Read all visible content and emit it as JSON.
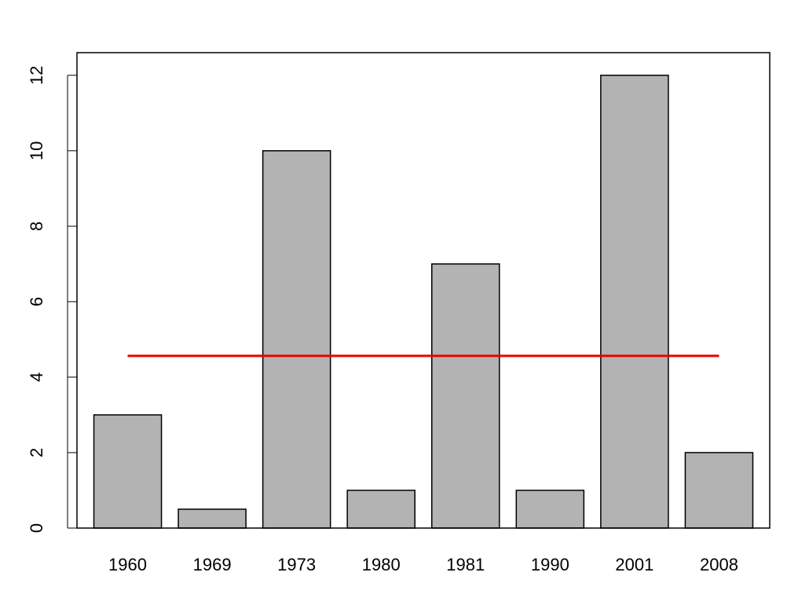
{
  "chart_data": {
    "type": "bar",
    "categories": [
      "1960",
      "1969",
      "1973",
      "1980",
      "1981",
      "1990",
      "2001",
      "2008"
    ],
    "values": [
      3,
      0.5,
      10,
      1,
      7,
      1,
      12,
      2
    ],
    "color": "#b3b3b3",
    "ylim": [
      0,
      12.6
    ],
    "yticks": [
      0,
      2,
      4,
      6,
      8,
      10,
      12
    ],
    "reference_line": {
      "value": 4.5625,
      "color": "#ee0000"
    }
  }
}
